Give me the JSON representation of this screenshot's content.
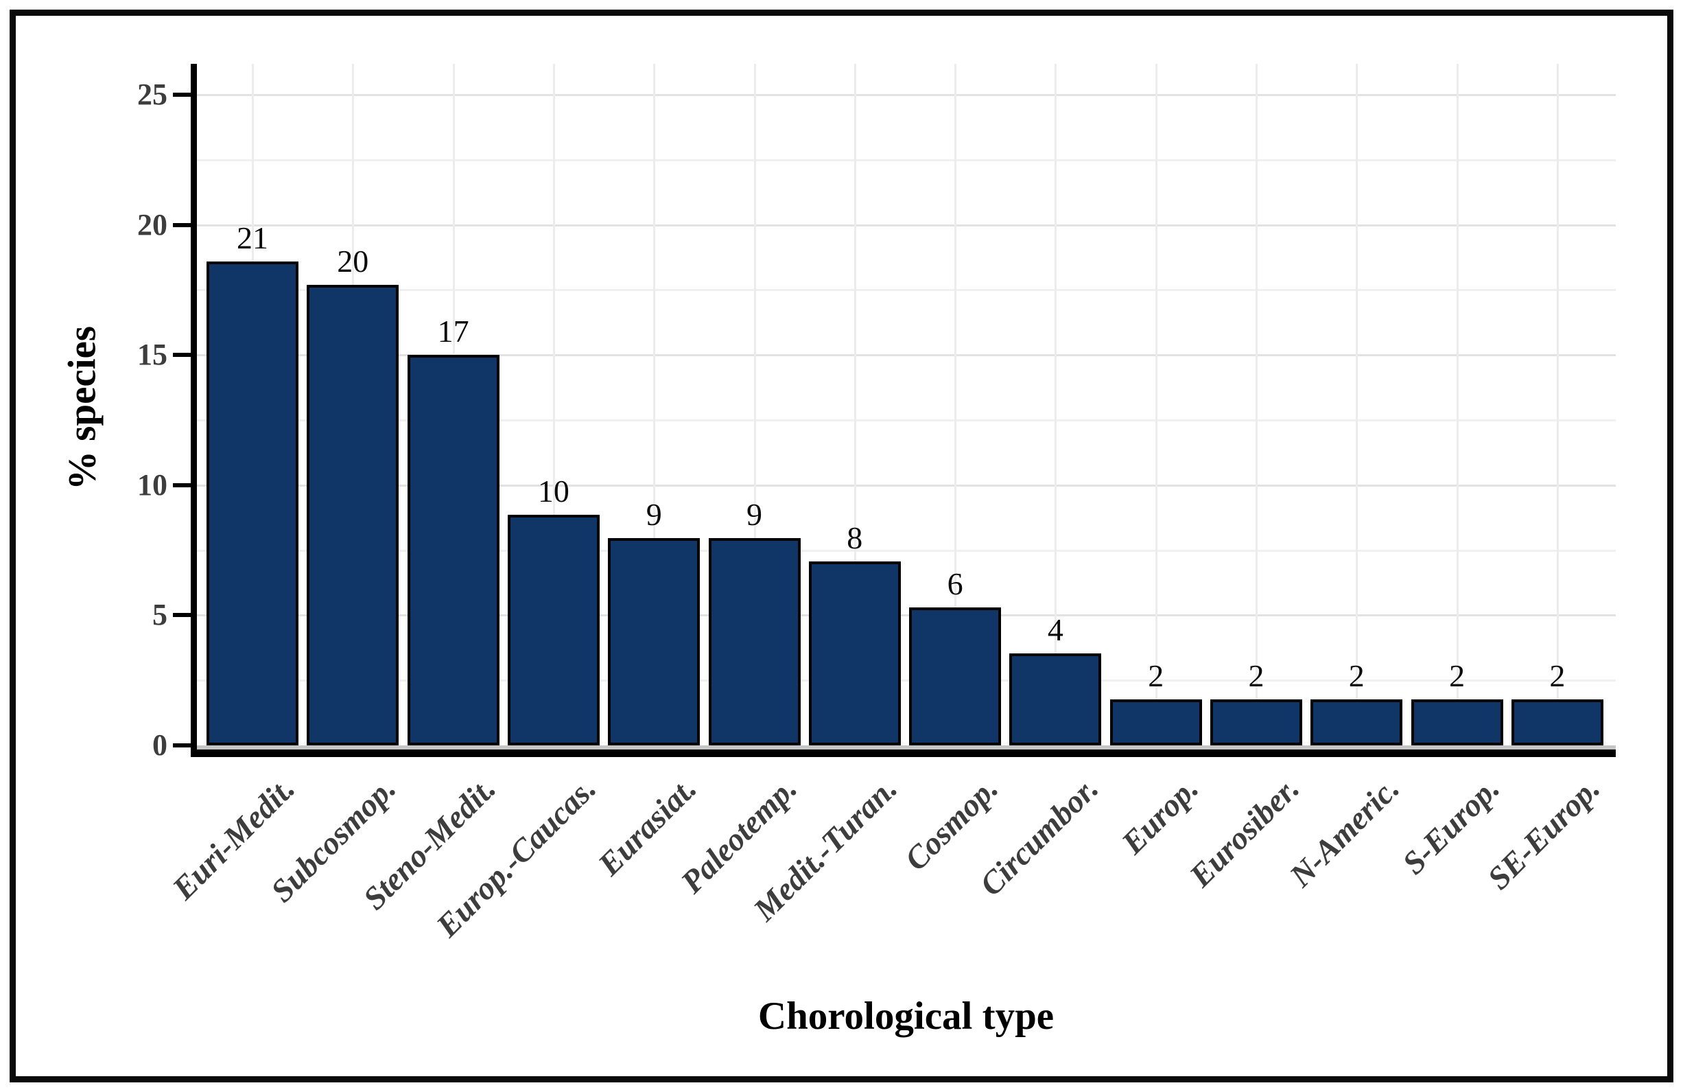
{
  "chart_data": {
    "type": "bar",
    "title": "",
    "xlabel": "Chorological type",
    "ylabel": "% species",
    "categories": [
      "Euri-Medit.",
      "Subcosmop.",
      "Steno-Medit.",
      "Europ.-Caucas.",
      "Eurasiat.",
      "Paleotemp.",
      "Medit.-Turan.",
      "Cosmop.",
      "Circumbor.",
      "Europ.",
      "Eurosiber.",
      "N-Americ.",
      "S-Europ.",
      "SE-Europ."
    ],
    "bar_labels": [
      "21",
      "20",
      "17",
      "10",
      "9",
      "9",
      "8",
      "6",
      "4",
      "2",
      "2",
      "2",
      "2",
      "2"
    ],
    "bar_heights_percent": [
      18.6,
      17.7,
      15.0,
      8.85,
      7.96,
      7.96,
      7.08,
      5.31,
      3.54,
      1.77,
      1.77,
      1.77,
      1.77,
      1.77
    ],
    "y_major_ticks": [
      0,
      5,
      10,
      15,
      20,
      25
    ],
    "y_minor_gridlines": [
      2.5,
      7.5,
      12.5,
      17.5,
      22.5
    ],
    "ylim": [
      0,
      26.2
    ],
    "grid": "horizontal major+minor, vertical at category centers",
    "legend_position": "none",
    "colors": {
      "bar_fill": "#0f3666",
      "bar_border": "#000000",
      "axis_line": "#000000",
      "tick_text": "#3d3d3d",
      "value_text": "#0a0a0a",
      "grid_major": "#e2e2e2",
      "grid_minor": "#f0f0f0",
      "frame": "#0a0a0a"
    }
  }
}
